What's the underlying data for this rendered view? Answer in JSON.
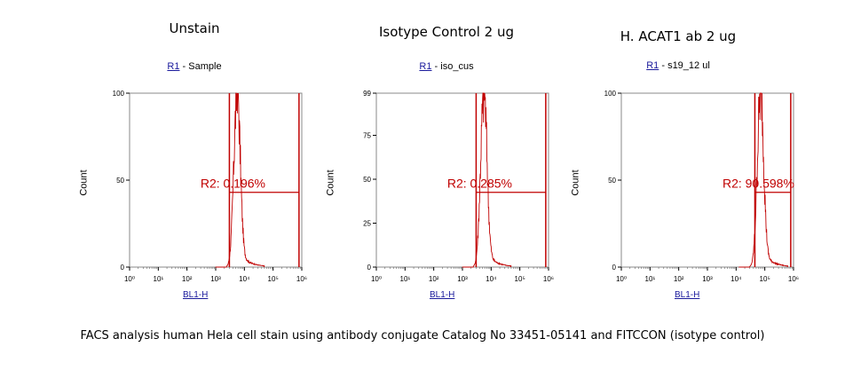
{
  "chart_data": [
    {
      "type": "area",
      "title": "Unstain",
      "gate_label": "R1",
      "sample_name": "Sample",
      "xlabel": "BL1-H",
      "ylabel": "Count",
      "x_scale": "log",
      "xlim": [
        1,
        1000000
      ],
      "ylim": [
        0,
        100
      ],
      "yticks": [
        "0",
        "50",
        "100"
      ],
      "xticks": [
        "10⁰",
        "10¹",
        "10²",
        "10³",
        "10⁴",
        "10⁵",
        "10⁶"
      ],
      "region_label": "R2: 0.196%",
      "region_bounds_x": [
        3000,
        800000
      ],
      "histogram_peak_x": 5500,
      "histogram_peak_y": 100
    },
    {
      "type": "area",
      "title": "Isotype Control 2 ug",
      "gate_label": "R1",
      "sample_name": "iso_cus",
      "xlabel": "BL1-H",
      "ylabel": "Count",
      "x_scale": "log",
      "xlim": [
        1,
        1000000
      ],
      "ylim": [
        0,
        99
      ],
      "yticks": [
        "0",
        "25",
        "50",
        "75",
        "99"
      ],
      "xticks": [
        "10⁰",
        "10¹",
        "10²",
        "10³",
        "10⁴",
        "10⁵",
        "10⁶"
      ],
      "region_label": "R2: 0.285%",
      "region_bounds_x": [
        3000,
        800000
      ],
      "histogram_peak_x": 5500,
      "histogram_peak_y": 99
    },
    {
      "type": "area",
      "title": "H. ACAT1 ab 2 ug",
      "gate_label": "R1",
      "sample_name": "s19_12 ul",
      "xlabel": "BL1-H",
      "ylabel": "Count",
      "x_scale": "log",
      "xlim": [
        1,
        1000000
      ],
      "ylim": [
        0,
        100
      ],
      "yticks": [
        "0",
        "50",
        "100"
      ],
      "xticks": [
        "10⁰",
        "10¹",
        "10²",
        "10³",
        "10⁴",
        "10⁵",
        "10⁶"
      ],
      "region_label": "R2: 90.598%",
      "region_bounds_x": [
        45000,
        800000
      ],
      "histogram_peak_x": 70000,
      "histogram_peak_y": 100
    }
  ],
  "caption": "FACS analysis human Hela cell stain using antibody conjugate Catalog No 33451-05141 and FITCCON (isotype control)",
  "colors": {
    "histogram": "#c00000",
    "link": "#1a1a9c",
    "axis": "#888888"
  }
}
